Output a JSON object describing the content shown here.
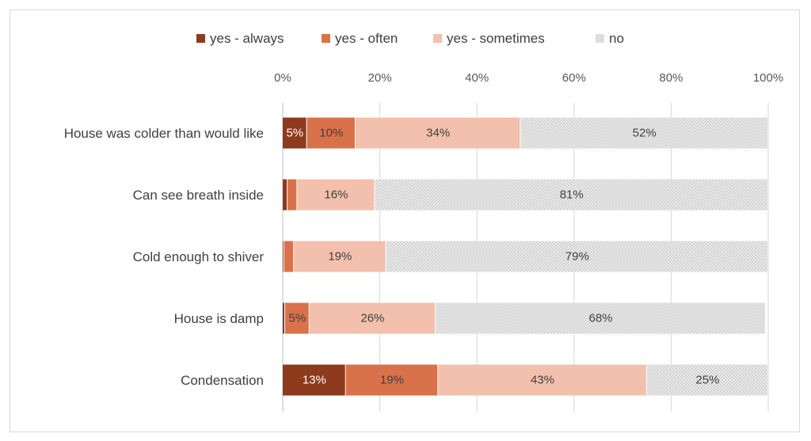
{
  "chart_data": {
    "type": "bar",
    "orientation": "horizontal",
    "stacked": "percent",
    "title": "",
    "xlabel": "",
    "ylabel": "",
    "xlim": [
      0,
      100
    ],
    "x_ticks": [
      "0%",
      "20%",
      "40%",
      "60%",
      "80%",
      "100%"
    ],
    "grid": true,
    "legend_position": "top",
    "categories": [
      "House was colder than would like",
      "Can see breath inside",
      "Cold enough to shiver",
      "House is damp",
      "Condensation"
    ],
    "series": [
      {
        "name": "yes - always",
        "color": "#8e3a1c",
        "values": [
          5,
          1,
          0.3,
          0.5,
          13
        ],
        "labels": [
          "5%",
          null,
          null,
          null,
          "13%"
        ]
      },
      {
        "name": "yes - often",
        "color": "#d9714a",
        "values": [
          10,
          2,
          2,
          5,
          19
        ],
        "labels": [
          "10%",
          null,
          null,
          "5%",
          "19%"
        ]
      },
      {
        "name": "yes - sometimes",
        "color": "#f2c0ac",
        "values": [
          34,
          16,
          19,
          26,
          43
        ],
        "labels": [
          "34%",
          "16%",
          "19%",
          "26%",
          "43%"
        ]
      },
      {
        "name": "no",
        "color": "#e3e3e3",
        "values": [
          52,
          81,
          79,
          68,
          25
        ],
        "labels": [
          "52%",
          "81%",
          "79%",
          "68%",
          "25%"
        ]
      }
    ]
  }
}
